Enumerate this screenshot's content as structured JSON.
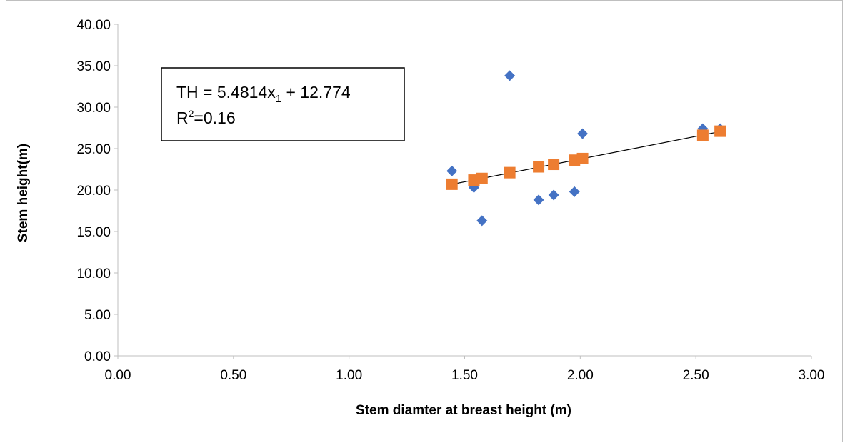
{
  "chart_data": {
    "type": "scatter",
    "xlabel": "Stem diamter at breast height (m)",
    "ylabel": "Stem height(m)",
    "xlim": [
      0,
      3
    ],
    "ylim": [
      0,
      40
    ],
    "x_ticks": [
      "0.00",
      "0.50",
      "1.00",
      "1.50",
      "2.00",
      "2.50",
      "3.00"
    ],
    "y_ticks": [
      "0.00",
      "5.00",
      "10.00",
      "15.00",
      "20.00",
      "25.00",
      "30.00",
      "35.00",
      "40.00"
    ],
    "grid": false,
    "series": [
      {
        "marker": "diamond",
        "color": "#4472c4",
        "x": [
          1.445,
          1.54,
          1.575,
          1.695,
          1.82,
          1.885,
          1.975,
          2.01,
          2.53,
          2.605
        ],
        "y": [
          22.3,
          20.3,
          16.3,
          33.8,
          18.8,
          19.4,
          19.8,
          26.8,
          27.4,
          27.4
        ]
      },
      {
        "marker": "square",
        "color": "#ed7d31",
        "x": [
          1.445,
          1.54,
          1.575,
          1.695,
          1.82,
          1.885,
          1.975,
          2.01,
          2.53,
          2.605
        ],
        "y": [
          20.7,
          21.2,
          21.4,
          22.1,
          22.8,
          23.1,
          23.6,
          23.8,
          26.6,
          27.1
        ]
      }
    ],
    "trendline": {
      "slope": 5.4814,
      "intercept": 12.774,
      "x_range": [
        1.445,
        2.605
      ],
      "color": "#000000"
    },
    "annotation": {
      "equation_prefix": "TH = 5.4814x",
      "equation_subscript": "1",
      "equation_suffix": " + 12.774",
      "r2_prefix": "R",
      "r2_superscript": "2",
      "r2_suffix": "=0.16"
    }
  }
}
